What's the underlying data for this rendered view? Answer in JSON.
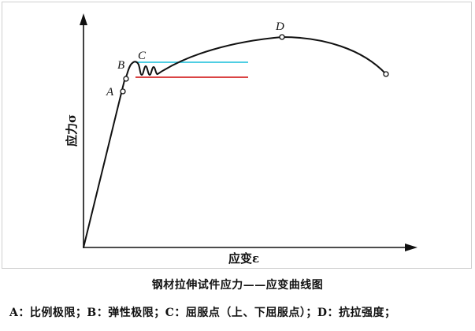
{
  "diagram": {
    "y_axis_label": "应力σ",
    "x_axis_label": "应变ε",
    "points": {
      "A": "A",
      "B": "B",
      "C": "C",
      "D": "D"
    },
    "colors": {
      "curve": "#111111",
      "upper_yield_line": "#36c7df",
      "lower_yield_line": "#d42a2a"
    }
  },
  "caption": "钢材拉伸试件应力——应变曲线图",
  "legend": "A：比例极限；B：弹性极限；C：屈服点（上、下屈服点）；D：抗拉强度；"
}
